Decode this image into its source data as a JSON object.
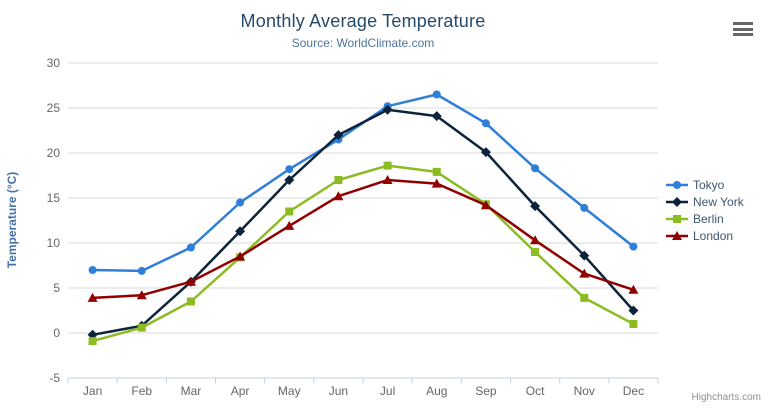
{
  "chart_data": {
    "type": "line",
    "title": "Monthly Average Temperature",
    "subtitle": "Source: WorldClimate.com",
    "ylabel": "Temperature (°C)",
    "xlabel": "",
    "categories": [
      "Jan",
      "Feb",
      "Mar",
      "Apr",
      "May",
      "Jun",
      "Jul",
      "Aug",
      "Sep",
      "Oct",
      "Nov",
      "Dec"
    ],
    "series": [
      {
        "name": "Tokyo",
        "color": "#2f7ed8",
        "marker": "circle",
        "values": [
          7.0,
          6.9,
          9.5,
          14.5,
          18.2,
          21.5,
          25.2,
          26.5,
          23.3,
          18.3,
          13.9,
          9.6
        ]
      },
      {
        "name": "New York",
        "color": "#0d233a",
        "marker": "diamond",
        "values": [
          -0.2,
          0.8,
          5.7,
          11.3,
          17.0,
          22.0,
          24.8,
          24.1,
          20.1,
          14.1,
          8.6,
          2.5
        ]
      },
      {
        "name": "Berlin",
        "color": "#8bbc21",
        "marker": "square",
        "values": [
          -0.9,
          0.6,
          3.5,
          8.4,
          13.5,
          17.0,
          18.6,
          17.9,
          14.3,
          9.0,
          3.9,
          1.0
        ]
      },
      {
        "name": "London",
        "color": "#910000",
        "marker": "triangle",
        "values": [
          3.9,
          4.2,
          5.7,
          8.5,
          11.9,
          15.2,
          17.0,
          16.6,
          14.2,
          10.3,
          6.6,
          4.8
        ]
      }
    ],
    "ylim": [
      -5,
      30
    ],
    "ytick_step": 5,
    "grid": "horizontal",
    "legend_position": "right"
  },
  "colors": {
    "title": "#274b6d",
    "subtitle": "#4d759e",
    "axis_title": "#4572a7",
    "axis_labels": "#666666",
    "grid_line": "#d8d8d8",
    "axis_line": "#c0d0e0"
  },
  "context_menu": {
    "icon": "hamburger-icon"
  },
  "credits": {
    "label": "Highcharts.com"
  }
}
